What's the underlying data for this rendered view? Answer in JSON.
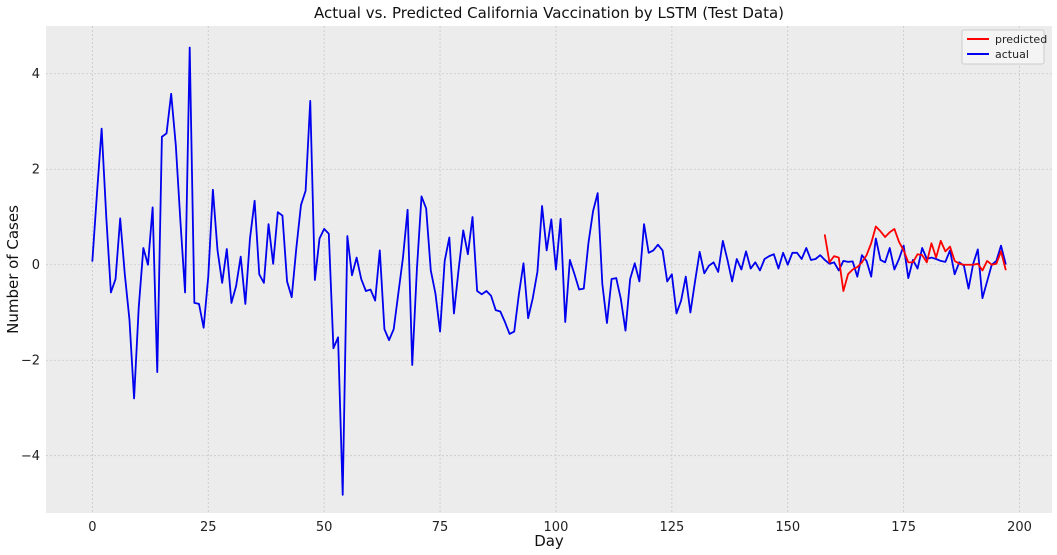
{
  "chart_data": {
    "type": "line",
    "title": "Actual vs. Predicted California Vaccination by LSTM (Test Data)",
    "xlabel": "Day",
    "ylabel": "Number of Cases",
    "xlim": [
      -10,
      207
    ],
    "ylim": [
      -5.2,
      5.0
    ],
    "xticks": [
      0,
      25,
      50,
      75,
      100,
      125,
      150,
      175,
      200
    ],
    "yticks": [
      -4,
      -2,
      0,
      2,
      4
    ],
    "grid": true,
    "legend_position": "top-right",
    "series": [
      {
        "name": "predicted",
        "color": "#ff0000",
        "x": [
          158,
          159,
          160,
          161,
          162,
          163,
          164,
          165,
          166,
          167,
          168,
          169,
          170,
          171,
          172,
          173,
          174,
          175,
          176,
          177,
          178,
          179,
          180,
          181,
          182,
          183,
          184,
          185,
          186,
          187,
          188,
          189,
          190,
          191,
          192,
          193,
          194,
          195,
          196,
          197
        ],
        "values": [
          0.62,
          0.05,
          0.18,
          0.15,
          -0.55,
          -0.2,
          -0.1,
          -0.05,
          0.05,
          0.2,
          0.45,
          0.8,
          0.7,
          0.58,
          0.68,
          0.75,
          0.48,
          0.3,
          0.05,
          0.05,
          0.22,
          0.2,
          0.05,
          0.45,
          0.15,
          0.5,
          0.28,
          0.38,
          0.08,
          0.02,
          0.0,
          0.0,
          0.0,
          0.02,
          -0.12,
          0.08,
          0.0,
          0.02,
          0.28,
          -0.1
        ]
      },
      {
        "name": "actual",
        "color": "#0000ee",
        "x": [
          0,
          1,
          2,
          3,
          4,
          5,
          6,
          7,
          8,
          9,
          10,
          11,
          12,
          13,
          14,
          15,
          16,
          17,
          18,
          19,
          20,
          21,
          22,
          23,
          24,
          25,
          26,
          27,
          28,
          29,
          30,
          31,
          32,
          33,
          34,
          35,
          36,
          37,
          38,
          39,
          40,
          41,
          42,
          43,
          44,
          45,
          46,
          47,
          48,
          49,
          50,
          51,
          52,
          53,
          54,
          55,
          56,
          57,
          58,
          59,
          60,
          61,
          62,
          63,
          64,
          65,
          66,
          67,
          68,
          69,
          70,
          71,
          72,
          73,
          74,
          75,
          76,
          77,
          78,
          79,
          80,
          81,
          82,
          83,
          84,
          85,
          86,
          87,
          88,
          89,
          90,
          91,
          92,
          93,
          94,
          95,
          96,
          97,
          98,
          99,
          100,
          101,
          102,
          103,
          104,
          105,
          106,
          107,
          108,
          109,
          110,
          111,
          112,
          113,
          114,
          115,
          116,
          117,
          118,
          119,
          120,
          121,
          122,
          123,
          124,
          125,
          126,
          127,
          128,
          129,
          130,
          131,
          132,
          133,
          134,
          135,
          136,
          137,
          138,
          139,
          140,
          141,
          142,
          143,
          144,
          145,
          146,
          147,
          148,
          149,
          150,
          151,
          152,
          153,
          154,
          155,
          156,
          157,
          158,
          159,
          160,
          161,
          162,
          163,
          164,
          165,
          166,
          167,
          168,
          169,
          170,
          171,
          172,
          173,
          174,
          175,
          176,
          177,
          178,
          179,
          180,
          181,
          182,
          183,
          184,
          185,
          186,
          187,
          188,
          189,
          190,
          191,
          192,
          193,
          194,
          195,
          196,
          197
        ],
        "values": [
          0.08,
          1.5,
          2.85,
          1.0,
          -0.58,
          -0.3,
          0.97,
          -0.2,
          -1.15,
          -2.8,
          -0.9,
          0.35,
          0.0,
          1.2,
          -2.25,
          2.68,
          2.75,
          3.58,
          2.5,
          0.9,
          -0.58,
          4.55,
          -0.8,
          -0.82,
          -1.32,
          -0.25,
          1.57,
          0.3,
          -0.38,
          0.33,
          -0.8,
          -0.45,
          0.17,
          -0.82,
          0.55,
          1.34,
          -0.2,
          -0.38,
          0.85,
          0.02,
          1.1,
          1.03,
          -0.35,
          -0.68,
          0.35,
          1.25,
          1.55,
          3.43,
          -0.32,
          0.55,
          0.75,
          0.65,
          -1.75,
          -1.52,
          -4.82,
          0.6,
          -0.22,
          0.15,
          -0.3,
          -0.55,
          -0.52,
          -0.75,
          0.3,
          -1.35,
          -1.58,
          -1.35,
          -0.6,
          0.15,
          1.15,
          -2.1,
          -0.1,
          1.43,
          1.18,
          -0.12,
          -0.6,
          -1.4,
          0.08,
          0.57,
          -1.02,
          -0.1,
          0.72,
          0.22,
          1.0,
          -0.55,
          -0.62,
          -0.55,
          -0.65,
          -0.95,
          -0.98,
          -1.2,
          -1.45,
          -1.4,
          -0.62,
          0.03,
          -1.12,
          -0.7,
          -0.15,
          1.23,
          0.3,
          0.95,
          -0.1,
          0.96,
          -1.2,
          0.1,
          -0.2,
          -0.52,
          -0.5,
          0.45,
          1.12,
          1.5,
          -0.4,
          -1.22,
          -0.3,
          -0.28,
          -0.72,
          -1.38,
          -0.3,
          0.03,
          -0.35,
          0.85,
          0.25,
          0.3,
          0.42,
          0.3,
          -0.35,
          -0.2,
          -1.02,
          -0.75,
          -0.25,
          -1.0,
          -0.35,
          0.27,
          -0.18,
          -0.02,
          0.05,
          -0.15,
          0.5,
          0.1,
          -0.35,
          0.12,
          -0.1,
          0.28,
          -0.08,
          0.05,
          -0.12,
          0.12,
          0.18,
          0.22,
          -0.08,
          0.25,
          0.0,
          0.25,
          0.25,
          0.12,
          0.35,
          0.1,
          0.12,
          0.2,
          0.1,
          0.02,
          0.05,
          -0.12,
          0.08,
          0.06,
          0.07,
          -0.25,
          0.2,
          0.08,
          -0.25,
          0.55,
          0.1,
          0.05,
          0.35,
          -0.1,
          0.12,
          0.4,
          -0.28,
          0.1,
          -0.08,
          0.35,
          0.12,
          0.15,
          0.12,
          0.08,
          0.06,
          0.3,
          -0.2,
          0.05,
          -0.02,
          -0.5,
          0.02,
          0.32,
          -0.7,
          -0.35,
          0.0,
          0.08,
          0.4,
          0.02
        ]
      }
    ]
  }
}
